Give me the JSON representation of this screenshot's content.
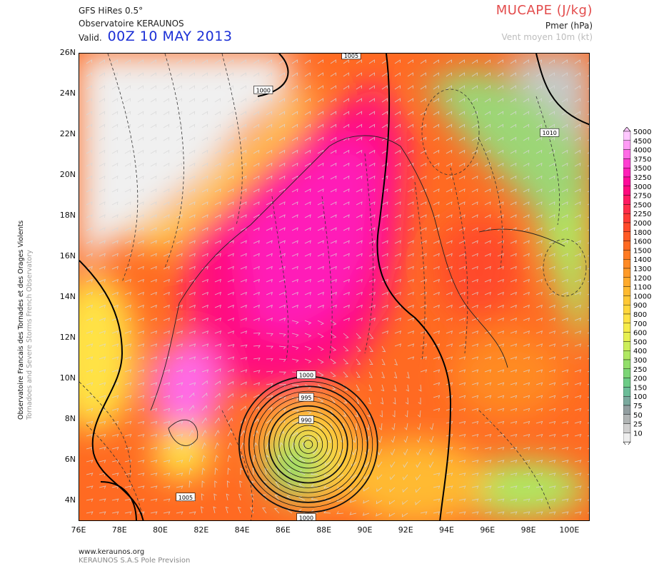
{
  "header": {
    "model": "GFS HiRes 0.5°",
    "observatory": "Observatoire KERAUNOS",
    "valid_label": "Valid.",
    "valid_date": "00Z 10 MAY 2013",
    "product_title": "MUCAPE (J/kg)",
    "pressure_label": "Pmer (hPa)",
    "wind_label": "Vent moyen 10m (kt)"
  },
  "side_label": {
    "line1": "Observatoire Francais des Tornades et des Orages Violents",
    "line2": "Tornadoes and Severe Storms French Observatory"
  },
  "map": {
    "lat_ticks": [
      "26N",
      "24N",
      "22N",
      "20N",
      "18N",
      "16N",
      "14N",
      "12N",
      "10N",
      "8N",
      "6N",
      "4N"
    ],
    "lat_values": [
      26,
      24,
      22,
      20,
      18,
      16,
      14,
      12,
      10,
      8,
      6,
      4
    ],
    "lon_ticks": [
      "76E",
      "78E",
      "80E",
      "82E",
      "84E",
      "86E",
      "88E",
      "90E",
      "92E",
      "94E",
      "96E",
      "98E",
      "100E"
    ],
    "lon_values": [
      76,
      78,
      80,
      82,
      84,
      86,
      88,
      90,
      92,
      94,
      96,
      98,
      100
    ],
    "lon_range": [
      76,
      101
    ],
    "lat_range": [
      3,
      26
    ],
    "isobar_labels": [
      {
        "text": "1005",
        "lon": 81.2,
        "lat": 4.2
      },
      {
        "text": "1000",
        "lon": 87.1,
        "lat": 3.2
      },
      {
        "text": "1000",
        "lon": 87.1,
        "lat": 10.2
      },
      {
        "text": "995",
        "lon": 87.1,
        "lat": 9.1
      },
      {
        "text": "990",
        "lon": 87.1,
        "lat": 8.0
      },
      {
        "text": "1000",
        "lon": 85.0,
        "lat": 24.2
      },
      {
        "text": "1005",
        "lon": 89.3,
        "lat": 25.9
      },
      {
        "text": "1010",
        "lon": 99.0,
        "lat": 22.1
      }
    ]
  },
  "legend": {
    "levels": [
      "5000",
      "4500",
      "4000",
      "3750",
      "3500",
      "3250",
      "3000",
      "2750",
      "2500",
      "2250",
      "2000",
      "1800",
      "1600",
      "1500",
      "1400",
      "1300",
      "1200",
      "1100",
      "1000",
      "900",
      "800",
      "700",
      "600",
      "500",
      "400",
      "300",
      "250",
      "200",
      "150",
      "100",
      "75",
      "50",
      "25",
      "10"
    ],
    "colors": [
      "#ffc8ff",
      "#ff9bf5",
      "#ff6be6",
      "#ff3ed2",
      "#ff1fb8",
      "#ff0a9a",
      "#ff0a7e",
      "#ff1a62",
      "#ff2d4a",
      "#ff3b36",
      "#ff4a2a",
      "#ff5a24",
      "#ff6a22",
      "#ff7a22",
      "#ff8a24",
      "#ff9a28",
      "#ffaa2c",
      "#ffba30",
      "#ffc836",
      "#ffd63c",
      "#ffe244",
      "#f6ec4a",
      "#e6f052",
      "#ccee5a",
      "#b0e862",
      "#92df6a",
      "#7cd676",
      "#6ccc86",
      "#6bbd98",
      "#7aa99e",
      "#929ea0",
      "#b0b4b4",
      "#d0d0d0",
      "#eeeeee"
    ]
  },
  "footer": {
    "site": "www.keraunos.org",
    "company": "KERAUNOS S.A.S Pole Prevision"
  }
}
